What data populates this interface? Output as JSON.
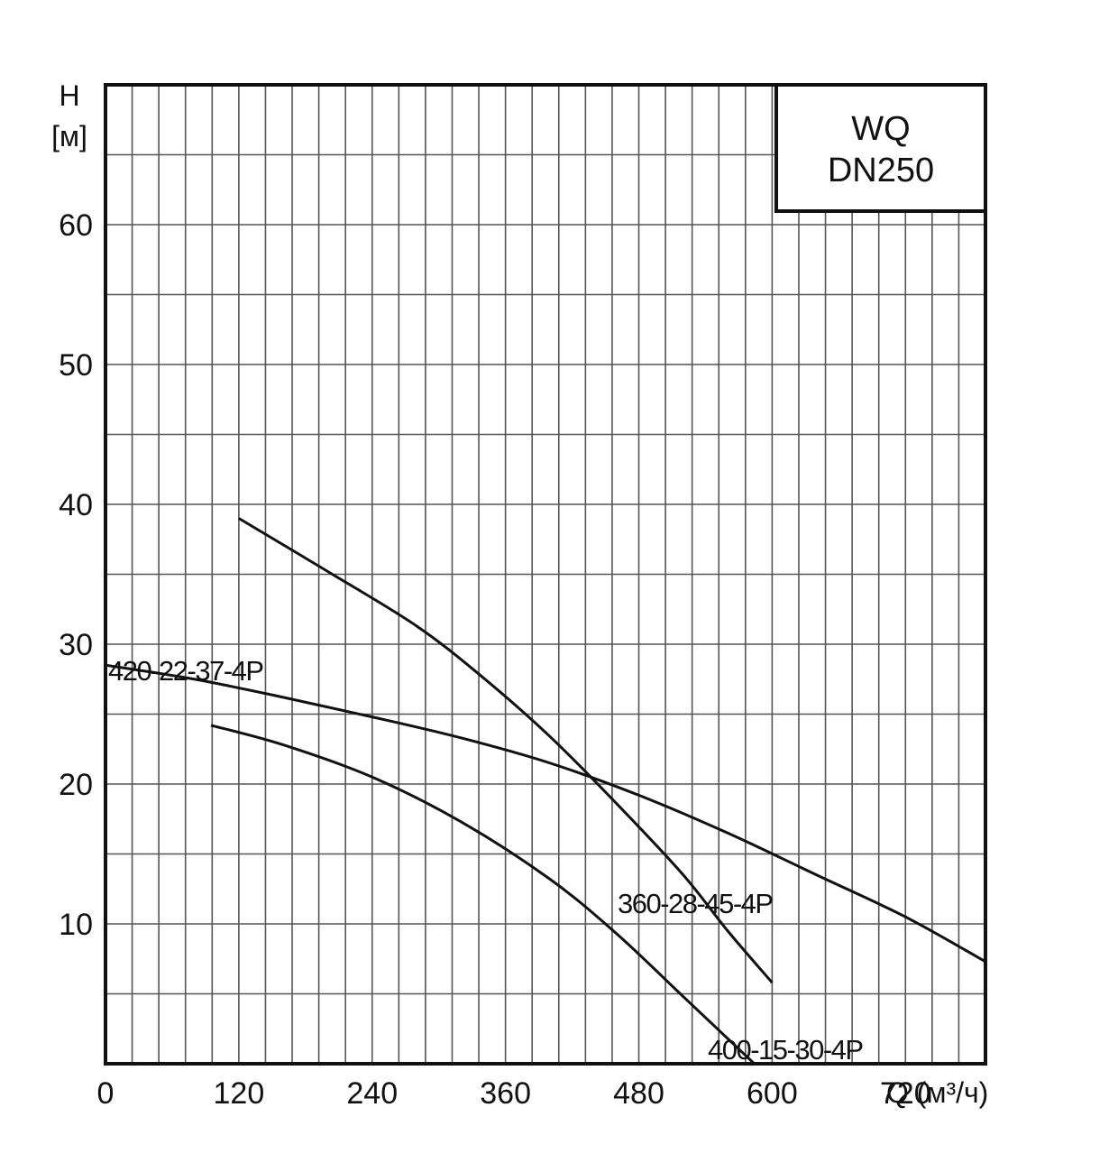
{
  "chart_data": {
    "type": "line",
    "title": "WQ",
    "subtitle": "DN250",
    "ylabel_symbol": "H",
    "ylabel_unit": "[м]",
    "xlabel": "Q (м³/ч)",
    "xlim": [
      0,
      792
    ],
    "ylim": [
      0,
      70
    ],
    "xticks": [
      0,
      120,
      240,
      360,
      480,
      600,
      720
    ],
    "yticks": [
      10,
      20,
      30,
      40,
      50,
      60
    ],
    "grid": true,
    "series": [
      {
        "name": "360-28-45-4P",
        "x": [
          120,
          200,
          280,
          340,
          400,
          460,
          520,
          560,
          600
        ],
        "y": [
          39,
          35.2,
          31.3,
          27.6,
          23.4,
          18.6,
          13.5,
          9.5,
          5.8
        ]
      },
      {
        "name": "420-22-37-4P",
        "x": [
          0,
          80,
          160,
          240,
          320,
          400,
          480,
          560,
          640,
          720,
          792
        ],
        "y": [
          28.5,
          27.5,
          26.2,
          24.8,
          23.3,
          21.5,
          19.2,
          16.5,
          13.5,
          10.5,
          7.3
        ]
      },
      {
        "name": "400-15-30-4P",
        "x": [
          95,
          160,
          240,
          320,
          400,
          460,
          520,
          560,
          600
        ],
        "y": [
          24.2,
          22.8,
          20.5,
          17.3,
          13.2,
          9.3,
          4.8,
          1.8,
          -1.2
        ]
      }
    ]
  }
}
